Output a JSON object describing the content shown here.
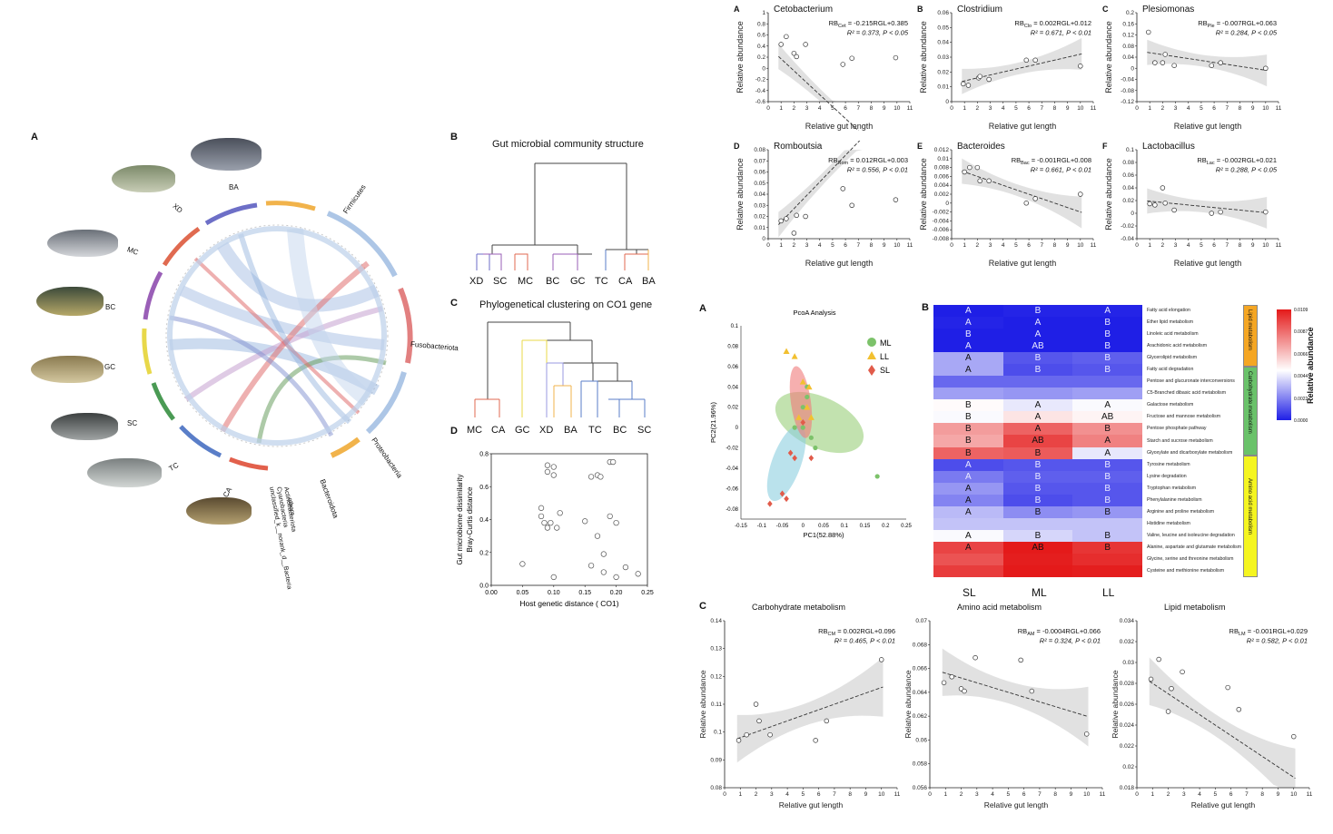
{
  "panels": {
    "left_A": "A",
    "left_B": "B",
    "left_C": "C",
    "left_D": "D",
    "b_title": "Gut microbial community structure",
    "c_title": "Phylogenetical clustering  on CO1 gene"
  },
  "fish_labels": [
    "BA",
    "XD",
    "MC",
    "BC",
    "GC",
    "SC",
    "TC",
    "CA"
  ],
  "phyla": [
    "Firmicutes",
    "Fusobacteriota",
    "Proteobacteria",
    "Bacteroidota"
  ],
  "phyla_legend": [
    "others",
    "Actinobacteriota",
    "Cyanobacteria",
    "unclassified_k__norank_d__Bacteria"
  ],
  "dendro_B_leaves": [
    "XD",
    "SC",
    "MC",
    "BC",
    "GC",
    "TC",
    "CA",
    "BA"
  ],
  "dendro_C_leaves": [
    "MC",
    "CA",
    "GC",
    "XD",
    "BA",
    "TC",
    "BC",
    "SC"
  ],
  "scatter_D": {
    "xlabel": "Host genetic distance  ( CO1)",
    "ylabel_1": "Gut microbiome dissimilarity",
    "ylabel_2": "Bray-Curtis distance"
  },
  "regression_top": [
    {
      "letter": "A",
      "genus": "Cetobacterium",
      "eq_pre": "RB",
      "eq_sub": "Cet",
      "eq_post": " = -0.215RGL+0.385",
      "stat": "R² = 0.373,  P < 0.05",
      "xlabel": "Relative gut length",
      "ylabel": "Relative abundance"
    },
    {
      "letter": "B",
      "genus": "Clostridium",
      "eq_pre": "RB",
      "eq_sub": "Clo",
      "eq_post": " = 0.002RGL+0.012",
      "stat": "R² = 0.671,  P < 0.01",
      "xlabel": "Relative gut length",
      "ylabel": "Relative abundance"
    },
    {
      "letter": "C",
      "genus": "Plesiomonas",
      "eq_pre": "RB",
      "eq_sub": "Ple",
      "eq_post": " = -0.007RGL+0.063",
      "stat": "R² = 0.284,  P < 0.05",
      "xlabel": "Relative gut length",
      "ylabel": "Relative abundance"
    },
    {
      "letter": "D",
      "genus": "Romboutsia",
      "eq_pre": "RB",
      "eq_sub": "Rom",
      "eq_post": " = 0.012RGL+0.003",
      "stat": "R² = 0.556,  P < 0.01",
      "xlabel": "Relative gut length",
      "ylabel": "Relative abundance"
    },
    {
      "letter": "E",
      "genus": "Bacteroides",
      "eq_pre": "RB",
      "eq_sub": "Bac",
      "eq_post": " = -0.001RGL+0.008",
      "stat": "R² = 0.661,  P < 0.01",
      "xlabel": "Relative gut length",
      "ylabel": "Relative abundance"
    },
    {
      "letter": "F",
      "genus": "Lactobacillus",
      "eq_pre": "RB",
      "eq_sub": "Lac",
      "eq_post": " = -0.002RGL+0.021",
      "stat": "R² = 0.288,  P < 0.05",
      "xlabel": "Relative gut length",
      "ylabel": "Relative abundance"
    }
  ],
  "pcoa": {
    "letter": "A",
    "title": "PcoA Analysis",
    "xlabel": "PC1(52.88%)",
    "ylabel": "PC2(21.96%)",
    "legend": [
      "ML",
      "LL",
      "SL"
    ]
  },
  "heatmap": {
    "letter": "B",
    "columns": [
      "SL",
      "ML",
      "LL"
    ],
    "colorbar_label": "Relative abundance",
    "colorbar_ticks": [
      "0.0109",
      "0.0087",
      "0.0066",
      "0.0044",
      "0.0022",
      "0.0000"
    ],
    "groups": [
      "Lipid metabolism",
      "Carbohydrate metabolism",
      "Amino acid metabolism"
    ],
    "rows": [
      "Fatty acid elongation",
      "Ether lipid metabolism",
      "Linoleic acid metabolism",
      "Arachidonic acid metabolism",
      "Glycerolipid metabolism",
      "Fatty acid degradation",
      "Pentose and glucuronate interconversions",
      "C5-Branched dibasic acid metabolism",
      "Galactose metabolism",
      "Fructose and mannose metabolism",
      "Pentose phosphate pathway",
      "Starch and sucrose metabolism",
      "Glyoxylate and dicarboxylate metabolism",
      "Tyrosine metabolism",
      "Lysine degradation",
      "Tryptophan metabolism",
      "Phenylalanine metabolism",
      "Arginine and proline metabolism",
      "Histidine metabolism",
      "Valine, leucine and isoleucine degradation",
      "Alanine, aspartate and glutamate metabolism",
      "Glycine, serine and threonine metabolism",
      "Cysteine and methionine metabolism"
    ],
    "letters": [
      [
        "A",
        "B",
        "A"
      ],
      [
        "A",
        "A",
        "B"
      ],
      [
        "B",
        "A",
        "B"
      ],
      [
        "A",
        "AB",
        "B"
      ],
      [
        "A",
        "B",
        "B"
      ],
      [
        "A",
        "B",
        "B"
      ],
      [
        "",
        "",
        ""
      ],
      [
        "",
        "",
        ""
      ],
      [
        "B",
        "A",
        "A"
      ],
      [
        "B",
        "A",
        "AB"
      ],
      [
        "B",
        "A",
        "B"
      ],
      [
        "B",
        "AB",
        "A"
      ],
      [
        "B",
        "B",
        "A"
      ],
      [
        "A",
        "B",
        "B"
      ],
      [
        "A",
        "B",
        "B"
      ],
      [
        "A",
        "B",
        "B"
      ],
      [
        "A",
        "B",
        "B"
      ],
      [
        "A",
        "B",
        "B"
      ],
      [
        "",
        "",
        ""
      ],
      [
        "A",
        "B",
        "B"
      ],
      [
        "A",
        "AB",
        "B"
      ],
      [
        "",
        "",
        ""
      ],
      [
        "",
        "",
        ""
      ]
    ],
    "values": [
      [
        0.0,
        0.0001,
        0.0001
      ],
      [
        0.0001,
        0.0,
        0.0
      ],
      [
        0.0,
        0.0,
        0.0
      ],
      [
        0.0,
        0.0,
        0.0
      ],
      [
        0.003,
        0.0012,
        0.0014
      ],
      [
        0.003,
        0.001,
        0.0012
      ],
      [
        0.0016,
        0.0016,
        0.0016
      ],
      [
        0.0028,
        0.0026,
        0.0028
      ],
      [
        0.005,
        0.0044,
        0.0048
      ],
      [
        0.0048,
        0.0056,
        0.0052
      ],
      [
        0.0075,
        0.009,
        0.0078
      ],
      [
        0.0072,
        0.0098,
        0.0082
      ],
      [
        0.009,
        0.0092,
        0.0044
      ],
      [
        0.001,
        0.0012,
        0.0012
      ],
      [
        0.002,
        0.0014,
        0.0014
      ],
      [
        0.0026,
        0.0012,
        0.0012
      ],
      [
        0.0022,
        0.001,
        0.0012
      ],
      [
        0.0034,
        0.0024,
        0.0026
      ],
      [
        0.0036,
        0.0036,
        0.0036
      ],
      [
        0.0048,
        0.004,
        0.0036
      ],
      [
        0.0098,
        0.0109,
        0.0102
      ],
      [
        0.0094,
        0.0108,
        0.0104
      ],
      [
        0.01,
        0.0109,
        0.0108
      ]
    ]
  },
  "regression_bottom": {
    "letter": "C",
    "plots": [
      {
        "title": "Carbohydrate metabolism",
        "eq_pre": "RB",
        "eq_sub": "CM",
        "eq_post": " = 0.002RGL+0.096",
        "stat": "R² = 0.465,  P < 0.01",
        "xlabel": "Relative gut length",
        "ylabel": "Relative abundance"
      },
      {
        "title": "Amino acid metabolism",
        "eq_pre": "RB",
        "eq_sub": "AM",
        "eq_post": " = -0.0004RGL+0.066",
        "stat": "R² = 0.324,  P < 0.01",
        "xlabel": "Relative gut length",
        "ylabel": "Relative abundance"
      },
      {
        "title": "Lipid metabolism",
        "eq_pre": "RB",
        "eq_sub": "LM",
        "eq_post": " = -0.001RGL+0.029",
        "stat": "R² = 0.582,  P < 0.01",
        "xlabel": "Relative gut length",
        "ylabel": "Relative abundance"
      }
    ]
  },
  "colors": {
    "ml": "#7cc26a",
    "ll": "#f2c030",
    "sl": "#e15b4a",
    "heat_low": "#1f1fe6",
    "heat_mid": "#ffffff",
    "heat_high": "#e41a1a",
    "lipid_bar": "#f5a623",
    "carb_bar": "#6ac26a",
    "amino_bar": "#f5f520"
  },
  "chart_data": [
    {
      "type": "scatter",
      "title": "Cetobacterium",
      "xlabel": "Relative gut length",
      "ylabel": "Relative abundance",
      "xlim": [
        0,
        11
      ],
      "ylim": [
        -0.6,
        1.0
      ],
      "yticks": [
        -0.6,
        -0.4,
        -0.2,
        0.0,
        0.2,
        0.4,
        0.6,
        0.8,
        1.0
      ],
      "x": [
        1.0,
        1.4,
        2.0,
        2.2,
        2.9,
        5.8,
        6.5,
        9.9
      ],
      "y": [
        0.43,
        0.57,
        0.27,
        0.21,
        0.43,
        0.07,
        0.18,
        0.19
      ],
      "fit": [
        -0.215,
        0.385
      ]
    },
    {
      "type": "scatter",
      "title": "Clostridium",
      "xlabel": "Relative gut length",
      "ylabel": "Relative abundance",
      "xlim": [
        0,
        11
      ],
      "ylim": [
        0.0,
        0.06
      ],
      "yticks": [
        0.0,
        0.01,
        0.02,
        0.03,
        0.04,
        0.05,
        0.06
      ],
      "x": [
        0.9,
        1.3,
        2.1,
        2.2,
        2.9,
        5.8,
        6.5,
        10.0
      ],
      "y": [
        0.012,
        0.011,
        0.016,
        0.017,
        0.015,
        0.028,
        0.028,
        0.024
      ],
      "fit": [
        0.002,
        0.012
      ]
    },
    {
      "type": "scatter",
      "title": "Plesiomonas",
      "xlabel": "Relative gut length",
      "ylabel": "Relative abundance",
      "xlim": [
        0,
        11
      ],
      "ylim": [
        -0.12,
        0.2
      ],
      "yticks": [
        -0.12,
        -0.08,
        -0.04,
        0.0,
        0.04,
        0.08,
        0.12,
        0.16,
        0.2
      ],
      "x": [
        0.9,
        1.4,
        2.0,
        2.2,
        2.9,
        5.8,
        6.5,
        10.0
      ],
      "y": [
        0.13,
        0.02,
        0.02,
        0.05,
        0.01,
        0.01,
        0.02,
        0.0
      ],
      "fit": [
        -0.007,
        0.063
      ]
    },
    {
      "type": "scatter",
      "title": "Romboutsia",
      "xlabel": "Relative gut length",
      "ylabel": "Relative abundance",
      "xlim": [
        0,
        11
      ],
      "ylim": [
        0.0,
        0.08
      ],
      "yticks": [
        0.0,
        0.01,
        0.02,
        0.03,
        0.04,
        0.05,
        0.06,
        0.07,
        0.08
      ],
      "x": [
        1.0,
        1.4,
        2.0,
        2.2,
        2.9,
        5.8,
        6.5,
        9.9
      ],
      "y": [
        0.016,
        0.018,
        0.005,
        0.021,
        0.02,
        0.045,
        0.03,
        0.035
      ],
      "fit": [
        0.012,
        0.003
      ]
    },
    {
      "type": "scatter",
      "title": "Bacteroides",
      "xlabel": "Relative gut length",
      "ylabel": "Relative abundance",
      "xlim": [
        0,
        11
      ],
      "ylim": [
        -0.008,
        0.012
      ],
      "yticks": [
        -0.008,
        -0.006,
        -0.004,
        -0.002,
        0.0,
        0.002,
        0.004,
        0.006,
        0.008,
        0.01,
        0.012
      ],
      "x": [
        1.0,
        1.4,
        2.0,
        2.2,
        2.9,
        5.8,
        6.5,
        10.0
      ],
      "y": [
        0.007,
        0.008,
        0.008,
        0.005,
        0.005,
        0.0,
        0.001,
        0.002
      ],
      "fit": [
        -0.001,
        0.008
      ]
    },
    {
      "type": "scatter",
      "title": "Lactobacillus",
      "xlabel": "Relative gut length",
      "ylabel": "Relative abundance",
      "xlim": [
        0,
        11
      ],
      "ylim": [
        -0.04,
        0.1
      ],
      "yticks": [
        -0.04,
        -0.02,
        0.0,
        0.02,
        0.04,
        0.06,
        0.08,
        0.1
      ],
      "x": [
        1.0,
        1.4,
        2.0,
        2.2,
        2.9,
        5.8,
        6.5,
        10.0
      ],
      "y": [
        0.015,
        0.013,
        0.04,
        0.016,
        0.005,
        0.0,
        0.002,
        0.002
      ],
      "fit": [
        -0.002,
        0.021
      ]
    },
    {
      "type": "scatter",
      "title": "Carbohydrate metabolism",
      "xlabel": "Relative gut length",
      "ylabel": "Relative abundance",
      "xlim": [
        0,
        11
      ],
      "ylim": [
        0.08,
        0.14
      ],
      "yticks": [
        0.08,
        0.09,
        0.1,
        0.11,
        0.12,
        0.13,
        0.14
      ],
      "x": [
        0.9,
        1.4,
        2.0,
        2.2,
        2.9,
        5.8,
        6.5,
        10.0
      ],
      "y": [
        0.097,
        0.099,
        0.11,
        0.104,
        0.099,
        0.097,
        0.104,
        0.126
      ],
      "fit": [
        0.002,
        0.096
      ]
    },
    {
      "type": "scatter",
      "title": "Amino acid metabolism",
      "xlabel": "Relative gut length",
      "ylabel": "Relative abundance",
      "xlim": [
        0,
        11
      ],
      "ylim": [
        0.056,
        0.07
      ],
      "yticks": [
        0.056,
        0.058,
        0.06,
        0.062,
        0.064,
        0.066,
        0.068,
        0.07
      ],
      "x": [
        0.9,
        1.4,
        2.0,
        2.2,
        2.9,
        5.8,
        6.5,
        10.0
      ],
      "y": [
        0.0648,
        0.0653,
        0.0643,
        0.0641,
        0.0669,
        0.0667,
        0.0641,
        0.0605
      ],
      "fit": [
        -0.0004,
        0.066
      ]
    },
    {
      "type": "scatter",
      "title": "Lipid metabolism",
      "xlabel": "Relative gut length",
      "ylabel": "Relative abundance",
      "xlim": [
        0,
        11
      ],
      "ylim": [
        0.018,
        0.034
      ],
      "yticks": [
        0.018,
        0.02,
        0.022,
        0.024,
        0.026,
        0.028,
        0.03,
        0.032,
        0.034
      ],
      "x": [
        0.9,
        1.4,
        2.0,
        2.2,
        2.9,
        5.8,
        6.5,
        10.0
      ],
      "y": [
        0.0284,
        0.0303,
        0.0253,
        0.0275,
        0.0291,
        0.0276,
        0.0255,
        0.0229
      ],
      "fit": [
        -0.001,
        0.029
      ]
    },
    {
      "type": "scatter",
      "title": "",
      "xlabel": "Host genetic distance  ( CO1)",
      "ylabel": "Gut microbiome dissimilarity",
      "xlim": [
        0,
        0.25
      ],
      "ylim": [
        0.0,
        0.8
      ],
      "xticks": [
        0.0,
        0.05,
        0.1,
        0.15,
        0.2,
        0.25
      ],
      "yticks": [
        0.0,
        0.2,
        0.4,
        0.6,
        0.8
      ],
      "x": [
        0.05,
        0.08,
        0.08,
        0.085,
        0.09,
        0.09,
        0.09,
        0.095,
        0.1,
        0.1,
        0.1,
        0.105,
        0.11,
        0.15,
        0.16,
        0.16,
        0.17,
        0.17,
        0.175,
        0.18,
        0.18,
        0.19,
        0.19,
        0.195,
        0.2,
        0.2,
        0.215,
        0.235
      ],
      "y": [
        0.13,
        0.47,
        0.42,
        0.38,
        0.35,
        0.73,
        0.69,
        0.38,
        0.72,
        0.67,
        0.05,
        0.35,
        0.44,
        0.39,
        0.12,
        0.66,
        0.67,
        0.3,
        0.66,
        0.19,
        0.08,
        0.75,
        0.42,
        0.75,
        0.38,
        0.05,
        0.11,
        0.07
      ]
    },
    {
      "type": "scatter",
      "title": "PcoA Analysis",
      "xlabel": "PC1(52.88%)",
      "ylabel": "PC2(21.96%)",
      "xlim": [
        -0.15,
        0.25
      ],
      "ylim": [
        -0.09,
        0.1
      ],
      "xticks": [
        -0.15,
        -0.1,
        -0.05,
        0,
        0.05,
        0.1,
        0.15,
        0.2,
        0.25
      ],
      "yticks": [
        -0.08,
        -0.06,
        -0.04,
        -0.02,
        0,
        0.02,
        0.04,
        0.06,
        0.08,
        0.1
      ],
      "series": [
        {
          "name": "ML",
          "x": [
            0.0,
            0.01,
            -0.02,
            0.02,
            0.03,
            0.01,
            0.0,
            0.18
          ],
          "y": [
            0.0,
            0.03,
            0.0,
            -0.01,
            -0.02,
            0.04,
            0.02,
            -0.048
          ]
        },
        {
          "name": "LL",
          "x": [
            -0.04,
            -0.02,
            0.0,
            0.01,
            0.02,
            0.015,
            -0.01
          ],
          "y": [
            0.075,
            0.07,
            0.045,
            0.02,
            0.01,
            0.04,
            0.01
          ]
        },
        {
          "name": "SL",
          "x": [
            -0.08,
            -0.04,
            -0.03,
            -0.02,
            0.02,
            -0.05,
            0.0
          ],
          "y": [
            -0.075,
            -0.07,
            -0.025,
            -0.03,
            -0.03,
            -0.065,
            0.005
          ]
        }
      ]
    }
  ]
}
